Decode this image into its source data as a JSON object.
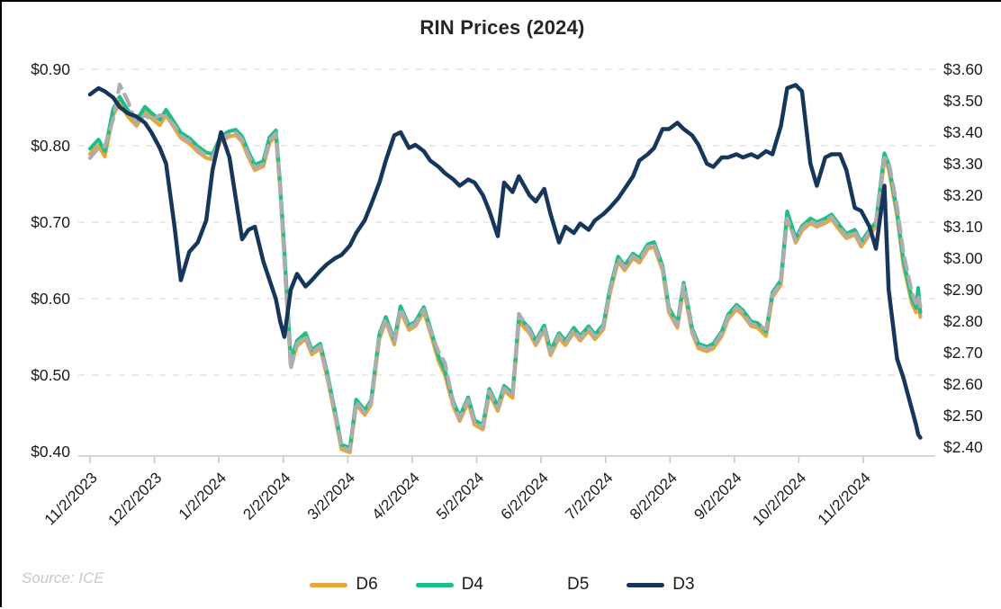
{
  "chart_data": {
    "type": "line",
    "title": "RIN Prices (2024)",
    "source_note": "Source: ICE",
    "layout": {
      "grid": "horizontal-dashed",
      "legend_position": "bottom-center",
      "x_label_rotation": -45,
      "background": "#FFFFFF",
      "grid_color": "#E4E4E4",
      "axis_color": "#C9C9C9",
      "text_color": "#1A1A1A"
    },
    "left_axis": {
      "min": 0.4,
      "max": 0.9,
      "tick_labels": [
        "$0.90",
        "$0.80",
        "$0.70",
        "$0.60",
        "$0.50",
        "$0.40"
      ],
      "applies_to": [
        "D6",
        "D4",
        "D5"
      ]
    },
    "right_axis": {
      "min": 2.4,
      "max": 3.6,
      "tick_labels": [
        "$3.60",
        "$3.50",
        "$3.40",
        "$3.30",
        "$3.20",
        "$3.10",
        "$3.00",
        "$2.90",
        "$2.80",
        "$2.70",
        "$2.60",
        "$2.50",
        "$2.40"
      ],
      "applies_to": [
        "D3"
      ]
    },
    "x_axis": {
      "first_tick": "11/2/2023",
      "last_tick": "11/2/2024",
      "tick_labels": [
        "11/2/2023",
        "12/2/2023",
        "1/2/2024",
        "2/2/2024",
        "3/2/2024",
        "4/2/2024",
        "5/2/2024",
        "6/2/2024",
        "7/2/2024",
        "8/2/2024",
        "9/2/2024",
        "10/2/2024",
        "11/2/2024"
      ]
    },
    "legend": [
      {
        "label": "D6",
        "color": "#E8A63C",
        "style": "solid",
        "axis": "left"
      },
      {
        "label": "D4",
        "color": "#1EBE87",
        "style": "solid",
        "axis": "left"
      },
      {
        "label": "D5",
        "color": "#ADADAD",
        "style": "dashed",
        "axis": "left"
      },
      {
        "label": "D3",
        "color": "#16365C",
        "style": "solid",
        "axis": "right"
      }
    ],
    "columns": [
      "date",
      "D6",
      "D4",
      "D5",
      "D3"
    ],
    "rows": [
      [
        "11/2/2023",
        0.789,
        0.796,
        0.784,
        3.52
      ],
      [
        "11/6/2023",
        0.8,
        0.808,
        0.797,
        3.54
      ],
      [
        "11/9/2023",
        0.786,
        0.793,
        0.799,
        3.53
      ],
      [
        "11/13/2023",
        0.84,
        0.848,
        0.835,
        3.51
      ],
      [
        "11/16/2023",
        0.856,
        0.864,
        0.88,
        3.48
      ],
      [
        "11/20/2023",
        0.838,
        0.846,
        0.858,
        3.46
      ],
      [
        "11/24/2023",
        0.826,
        0.833,
        0.828,
        3.45
      ],
      [
        "11/28/2023",
        0.844,
        0.851,
        0.841,
        3.43
      ],
      [
        "12/1/2023",
        0.836,
        0.843,
        0.833,
        3.4
      ],
      [
        "12/5/2023",
        0.827,
        0.834,
        0.84,
        3.35
      ],
      [
        "12/8/2023",
        0.84,
        0.847,
        0.838,
        3.3
      ],
      [
        "12/12/2023",
        0.823,
        0.83,
        0.826,
        3.1
      ],
      [
        "12/15/2023",
        0.81,
        0.817,
        0.813,
        2.93
      ],
      [
        "12/19/2023",
        0.803,
        0.81,
        0.806,
        3.02
      ],
      [
        "12/23/2023",
        0.792,
        0.799,
        0.795,
        3.05
      ],
      [
        "12/27/2023",
        0.784,
        0.791,
        0.787,
        3.12
      ],
      [
        "12/30/2023",
        0.782,
        0.789,
        0.785,
        3.28
      ],
      [
        "1/3/2024",
        0.806,
        0.813,
        0.809,
        3.4
      ],
      [
        "1/7/2024",
        0.812,
        0.819,
        0.815,
        3.32
      ],
      [
        "1/10/2024",
        0.814,
        0.821,
        0.817,
        3.19
      ],
      [
        "1/13/2024",
        0.805,
        0.812,
        0.808,
        3.06
      ],
      [
        "1/16/2024",
        0.785,
        0.792,
        0.788,
        3.09
      ],
      [
        "1/19/2024",
        0.768,
        0.775,
        0.771,
        3.1
      ],
      [
        "1/23/2024",
        0.773,
        0.78,
        0.776,
        2.99
      ],
      [
        "1/26/2024",
        0.804,
        0.811,
        0.807,
        2.93
      ],
      [
        "1/29/2024",
        0.813,
        0.82,
        0.816,
        2.87
      ],
      [
        "1/31/2024",
        0.743,
        0.75,
        0.746,
        2.8
      ],
      [
        "2/2/2024",
        0.655,
        0.662,
        0.65,
        2.75
      ],
      [
        "2/5/2024",
        0.513,
        0.52,
        0.508,
        2.9
      ],
      [
        "2/8/2024",
        0.538,
        0.545,
        0.541,
        2.95
      ],
      [
        "2/12/2024",
        0.548,
        0.555,
        0.551,
        2.91
      ],
      [
        "2/15/2024",
        0.527,
        0.533,
        0.53,
        2.93
      ],
      [
        "2/19/2024",
        0.535,
        0.541,
        0.538,
        2.96
      ],
      [
        "2/22/2024",
        0.5,
        0.506,
        0.503,
        2.98
      ],
      [
        "2/26/2024",
        0.446,
        0.452,
        0.449,
        3.0
      ],
      [
        "2/29/2024",
        0.403,
        0.409,
        0.406,
        3.01
      ],
      [
        "3/4/2024",
        0.399,
        0.405,
        0.402,
        3.04
      ],
      [
        "3/7/2024",
        0.462,
        0.468,
        0.465,
        3.08
      ],
      [
        "3/11/2024",
        0.448,
        0.454,
        0.451,
        3.12
      ],
      [
        "3/14/2024",
        0.461,
        0.467,
        0.464,
        3.17
      ],
      [
        "3/18/2024",
        0.548,
        0.554,
        0.551,
        3.24
      ],
      [
        "3/21/2024",
        0.57,
        0.576,
        0.573,
        3.31
      ],
      [
        "3/25/2024",
        0.54,
        0.546,
        0.543,
        3.39
      ],
      [
        "3/28/2024",
        0.584,
        0.59,
        0.587,
        3.4
      ],
      [
        "4/1/2024",
        0.559,
        0.565,
        0.562,
        3.35
      ],
      [
        "4/4/2024",
        0.564,
        0.57,
        0.567,
        3.36
      ],
      [
        "4/8/2024",
        0.583,
        0.589,
        0.586,
        3.34
      ],
      [
        "4/11/2024",
        0.556,
        0.562,
        0.559,
        3.31
      ],
      [
        "4/15/2024",
        0.518,
        0.524,
        0.53,
        3.29
      ],
      [
        "4/18/2024",
        0.5,
        0.506,
        0.516,
        3.27
      ],
      [
        "4/22/2024",
        0.459,
        0.465,
        0.462,
        3.25
      ],
      [
        "4/25/2024",
        0.44,
        0.446,
        0.443,
        3.23
      ],
      [
        "4/29/2024",
        0.465,
        0.471,
        0.468,
        3.25
      ],
      [
        "5/2/2024",
        0.435,
        0.441,
        0.438,
        3.24
      ],
      [
        "5/6/2024",
        0.429,
        0.435,
        0.432,
        3.2
      ],
      [
        "5/9/2024",
        0.476,
        0.482,
        0.479,
        3.15
      ],
      [
        "5/13/2024",
        0.453,
        0.459,
        0.456,
        3.07
      ],
      [
        "5/16/2024",
        0.48,
        0.486,
        0.483,
        3.24
      ],
      [
        "5/20/2024",
        0.47,
        0.476,
        0.473,
        3.21
      ],
      [
        "5/23/2024",
        0.57,
        0.576,
        0.58,
        3.26
      ],
      [
        "5/28/2024",
        0.555,
        0.561,
        0.558,
        3.2
      ],
      [
        "5/31/2024",
        0.539,
        0.545,
        0.542,
        3.18
      ],
      [
        "6/4/2024",
        0.559,
        0.565,
        0.562,
        3.22
      ],
      [
        "6/7/2024",
        0.526,
        0.532,
        0.529,
        3.14
      ],
      [
        "6/11/2024",
        0.549,
        0.555,
        0.552,
        3.05
      ],
      [
        "6/14/2024",
        0.539,
        0.545,
        0.542,
        3.1
      ],
      [
        "6/18/2024",
        0.556,
        0.562,
        0.559,
        3.08
      ],
      [
        "6/21/2024",
        0.545,
        0.551,
        0.548,
        3.11
      ],
      [
        "6/25/2024",
        0.558,
        0.564,
        0.561,
        3.09
      ],
      [
        "6/28/2024",
        0.547,
        0.553,
        0.55,
        3.12
      ],
      [
        "7/2/2024",
        0.56,
        0.566,
        0.563,
        3.14
      ],
      [
        "7/5/2024",
        0.606,
        0.612,
        0.609,
        3.16
      ],
      [
        "7/9/2024",
        0.649,
        0.655,
        0.652,
        3.19
      ],
      [
        "7/12/2024",
        0.637,
        0.643,
        0.64,
        3.22
      ],
      [
        "7/16/2024",
        0.653,
        0.659,
        0.656,
        3.26
      ],
      [
        "7/19/2024",
        0.647,
        0.653,
        0.65,
        3.31
      ],
      [
        "7/23/2024",
        0.665,
        0.671,
        0.668,
        3.33
      ],
      [
        "7/26/2024",
        0.668,
        0.674,
        0.671,
        3.35
      ],
      [
        "7/30/2024",
        0.637,
        0.643,
        0.64,
        3.41
      ],
      [
        "8/2/2024",
        0.582,
        0.588,
        0.585,
        3.41
      ],
      [
        "8/6/2024",
        0.562,
        0.568,
        0.565,
        3.43
      ],
      [
        "8/9/2024",
        0.615,
        0.621,
        0.618,
        3.41
      ],
      [
        "8/13/2024",
        0.555,
        0.561,
        0.558,
        3.39
      ],
      [
        "8/16/2024",
        0.535,
        0.541,
        0.538,
        3.36
      ],
      [
        "8/20/2024",
        0.531,
        0.537,
        0.534,
        3.3
      ],
      [
        "8/23/2024",
        0.535,
        0.541,
        0.538,
        3.29
      ],
      [
        "8/27/2024",
        0.551,
        0.557,
        0.554,
        3.32
      ],
      [
        "8/30/2024",
        0.573,
        0.579,
        0.576,
        3.32
      ],
      [
        "9/3/2024",
        0.586,
        0.592,
        0.589,
        3.33
      ],
      [
        "9/6/2024",
        0.579,
        0.585,
        0.582,
        3.32
      ],
      [
        "9/10/2024",
        0.564,
        0.57,
        0.567,
        3.33
      ],
      [
        "9/13/2024",
        0.562,
        0.568,
        0.565,
        3.32
      ],
      [
        "9/17/2024",
        0.551,
        0.557,
        0.56,
        3.34
      ],
      [
        "9/20/2024",
        0.602,
        0.608,
        0.605,
        3.33
      ],
      [
        "9/24/2024",
        0.618,
        0.624,
        0.621,
        3.42
      ],
      [
        "9/27/2024",
        0.708,
        0.714,
        0.705,
        3.54
      ],
      [
        "10/1/2024",
        0.673,
        0.679,
        0.676,
        3.55
      ],
      [
        "10/4/2024",
        0.689,
        0.695,
        0.692,
        3.53
      ],
      [
        "10/8/2024",
        0.699,
        0.705,
        0.702,
        3.3
      ],
      [
        "10/11/2024",
        0.694,
        0.7,
        0.697,
        3.23
      ],
      [
        "10/15/2024",
        0.699,
        0.705,
        0.702,
        3.32
      ],
      [
        "10/18/2024",
        0.704,
        0.71,
        0.707,
        3.33
      ],
      [
        "10/22/2024",
        0.689,
        0.695,
        0.692,
        3.33
      ],
      [
        "10/25/2024",
        0.679,
        0.685,
        0.682,
        3.28
      ],
      [
        "10/29/2024",
        0.684,
        0.69,
        0.687,
        3.16
      ],
      [
        "11/1/2024",
        0.668,
        0.674,
        0.671,
        3.15
      ],
      [
        "11/5/2024",
        0.684,
        0.69,
        0.687,
        3.1
      ],
      [
        "11/8/2024",
        0.694,
        0.7,
        0.697,
        3.03
      ],
      [
        "11/12/2024",
        0.782,
        0.79,
        0.784,
        3.23
      ],
      [
        "11/14/2024",
        0.77,
        0.776,
        0.78,
        2.9
      ],
      [
        "11/18/2024",
        0.708,
        0.714,
        0.72,
        2.68
      ],
      [
        "11/21/2024",
        0.644,
        0.65,
        0.66,
        2.62
      ],
      [
        "11/25/2024",
        0.594,
        0.6,
        0.608,
        2.52
      ],
      [
        "11/27/2024",
        0.582,
        0.588,
        0.594,
        2.47
      ],
      [
        "11/28/2024",
        0.608,
        0.614,
        0.604,
        2.44
      ],
      [
        "11/29/2024",
        0.576,
        0.582,
        0.59,
        2.43
      ]
    ]
  }
}
